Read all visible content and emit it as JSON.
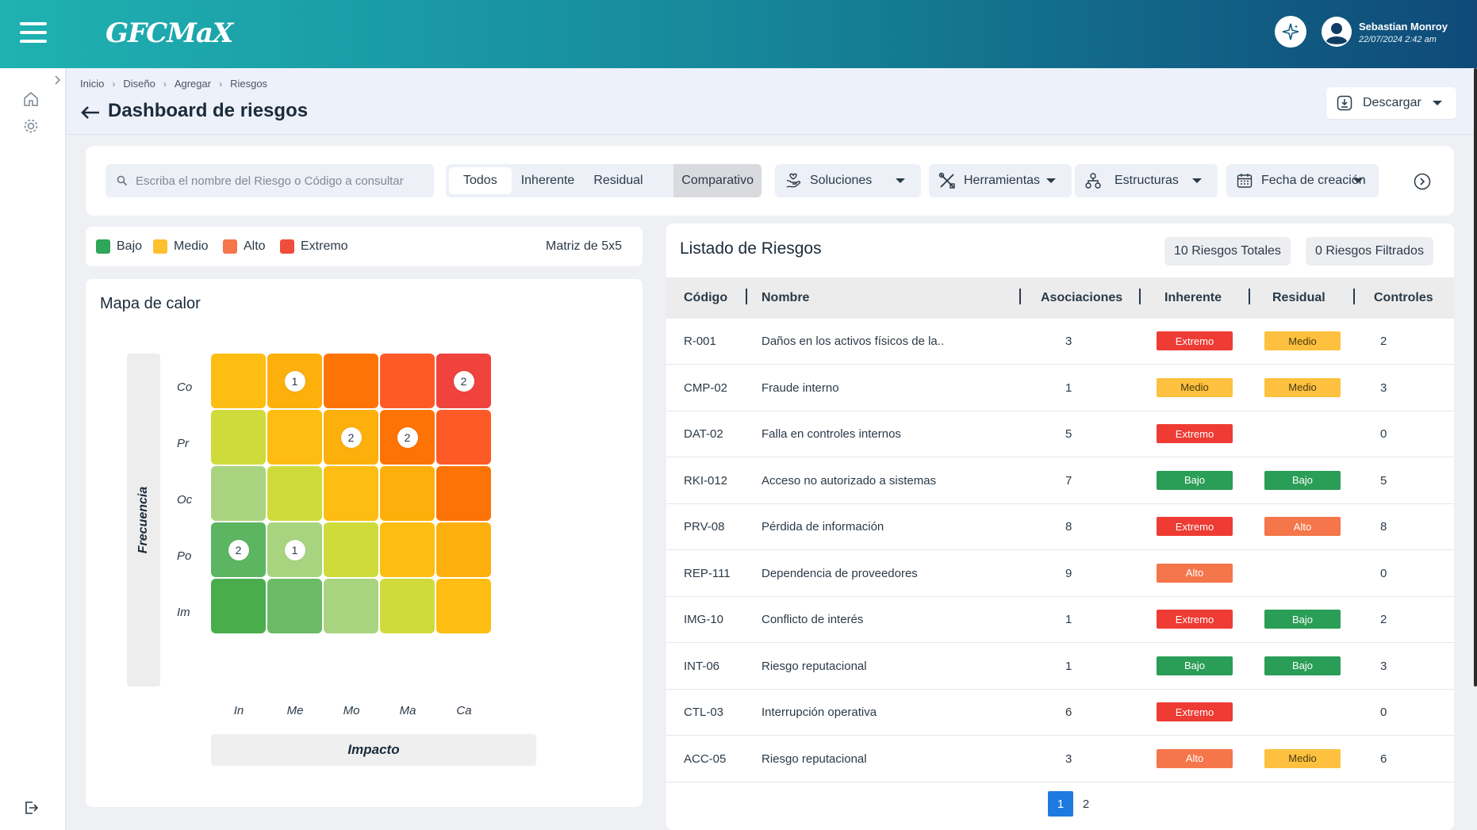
{
  "app": {
    "logo_text": "GFCMaX"
  },
  "user": {
    "name": "Sebastian Monroy",
    "datetime": "22/07/2024 2:42 am",
    "avatar_icon": "user-circle-icon",
    "assistant_icon": "sparkle-icon"
  },
  "breadcrumb": [
    "Inicio",
    "Diseño",
    "Agregar",
    "Riesgos"
  ],
  "page": {
    "title": "Dashboard de riesgos",
    "download_label": "Descargar"
  },
  "search": {
    "placeholder": "Escriba el nombre del Riesgo o Código a consultar"
  },
  "filters": [
    "Todos",
    "Inherente",
    "Residual",
    "Comparativo"
  ],
  "tools": {
    "soluciones": "Soluciones",
    "herramientas": "Herramientas",
    "estructuras": "Estructuras",
    "fecha": "Fecha de creación"
  },
  "legend": {
    "items": [
      {
        "label": "Bajo",
        "color": "#2fa65a"
      },
      {
        "label": "Medio",
        "color": "#fdc02f"
      },
      {
        "label": "Alto",
        "color": "#f4764a"
      },
      {
        "label": "Extremo",
        "color": "#f04e3c"
      }
    ],
    "matrix_size": "Matriz de 5x5"
  },
  "heatmap": {
    "title": "Mapa de calor",
    "y_axis_label": "Frecuencia",
    "x_axis_label": "Impacto",
    "rows": [
      "Co",
      "Pr",
      "Oc",
      "Po",
      "Im"
    ],
    "cols": [
      "In",
      "Me",
      "Mo",
      "Ma",
      "Ca"
    ],
    "colors": [
      [
        "#fdbd12",
        "#fdaf0c",
        "#fe7306",
        "#fe5a27",
        "#f0433e"
      ],
      [
        "#cfdb3a",
        "#fdbd12",
        "#fdaf0c",
        "#fe7306",
        "#fe5a27"
      ],
      [
        "#a8d47f",
        "#cfdb3a",
        "#fdbd12",
        "#fdaf0c",
        "#fe7306"
      ],
      [
        "#5cb561",
        "#a8d47f",
        "#cfdb3a",
        "#fdbd12",
        "#fdaf0c"
      ],
      [
        "#4aad4c",
        "#6aba66",
        "#a8d47f",
        "#cfdb3a",
        "#fdbd12"
      ]
    ],
    "counts": [
      [
        null,
        "1",
        null,
        null,
        "2"
      ],
      [
        null,
        null,
        "2",
        "2",
        null
      ],
      [
        null,
        null,
        null,
        null,
        null
      ],
      [
        "2",
        "1",
        null,
        null,
        null
      ],
      [
        null,
        null,
        null,
        null,
        null
      ]
    ]
  },
  "risk_list": {
    "title": "Listado de Riesgos",
    "total_label": "10 Riesgos Totales",
    "filtered_label": "0 Riesgos Filtrados",
    "headers": {
      "code": "Código",
      "name": "Nombre",
      "assoc": "Asociaciones",
      "inherent": "Inherente",
      "residual": "Residual",
      "controls": "Controles"
    },
    "rows": [
      {
        "code": "R-001",
        "name": "Daños en los activos físicos de la..",
        "assoc": "3",
        "inherent": "Extremo",
        "residual": "Medio",
        "controls": "2"
      },
      {
        "code": "CMP-02",
        "name": "Fraude interno",
        "assoc": "1",
        "inherent": "Medio",
        "residual": "Medio",
        "controls": "3"
      },
      {
        "code": "DAT-02",
        "name": "Falla en controles internos",
        "assoc": "5",
        "inherent": "Extremo",
        "residual": "",
        "controls": "0"
      },
      {
        "code": "RKI-012",
        "name": "Acceso no autorizado a sistemas",
        "assoc": "7",
        "inherent": "Bajo",
        "residual": "Bajo",
        "controls": "5"
      },
      {
        "code": "PRV-08",
        "name": "Pérdida de información",
        "assoc": "8",
        "inherent": "Extremo",
        "residual": "Alto",
        "controls": "8"
      },
      {
        "code": "REP-111",
        "name": "Dependencia de proveedores",
        "assoc": "9",
        "inherent": "Alto",
        "residual": "",
        "controls": "0"
      },
      {
        "code": "IMG-10",
        "name": "Conflicto de interés",
        "assoc": "1",
        "inherent": "Extremo",
        "residual": "Bajo",
        "controls": "2"
      },
      {
        "code": "INT-06",
        "name": "Riesgo reputacional",
        "assoc": "1",
        "inherent": "Bajo",
        "residual": "Bajo",
        "controls": "3"
      },
      {
        "code": "CTL-03",
        "name": "Interrupción operativa",
        "assoc": "6",
        "inherent": "Extremo",
        "residual": "",
        "controls": "0"
      },
      {
        "code": "ACC-05",
        "name": "Riesgo reputacional",
        "assoc": "3",
        "inherent": "Alto",
        "residual": "Medio",
        "controls": "6"
      }
    ],
    "pagination": {
      "pages": [
        "1",
        "2"
      ],
      "current": "1"
    }
  },
  "level_colors": {
    "Extremo": {
      "bg": "#ee3b33",
      "fg": "#ffffff"
    },
    "Alto": {
      "bg": "#f4764a",
      "fg": "#ffffff"
    },
    "Medio": {
      "bg": "#fdc13f",
      "fg": "#4b3a10"
    },
    "Bajo": {
      "bg": "#2a9d56",
      "fg": "#ffffff"
    }
  }
}
